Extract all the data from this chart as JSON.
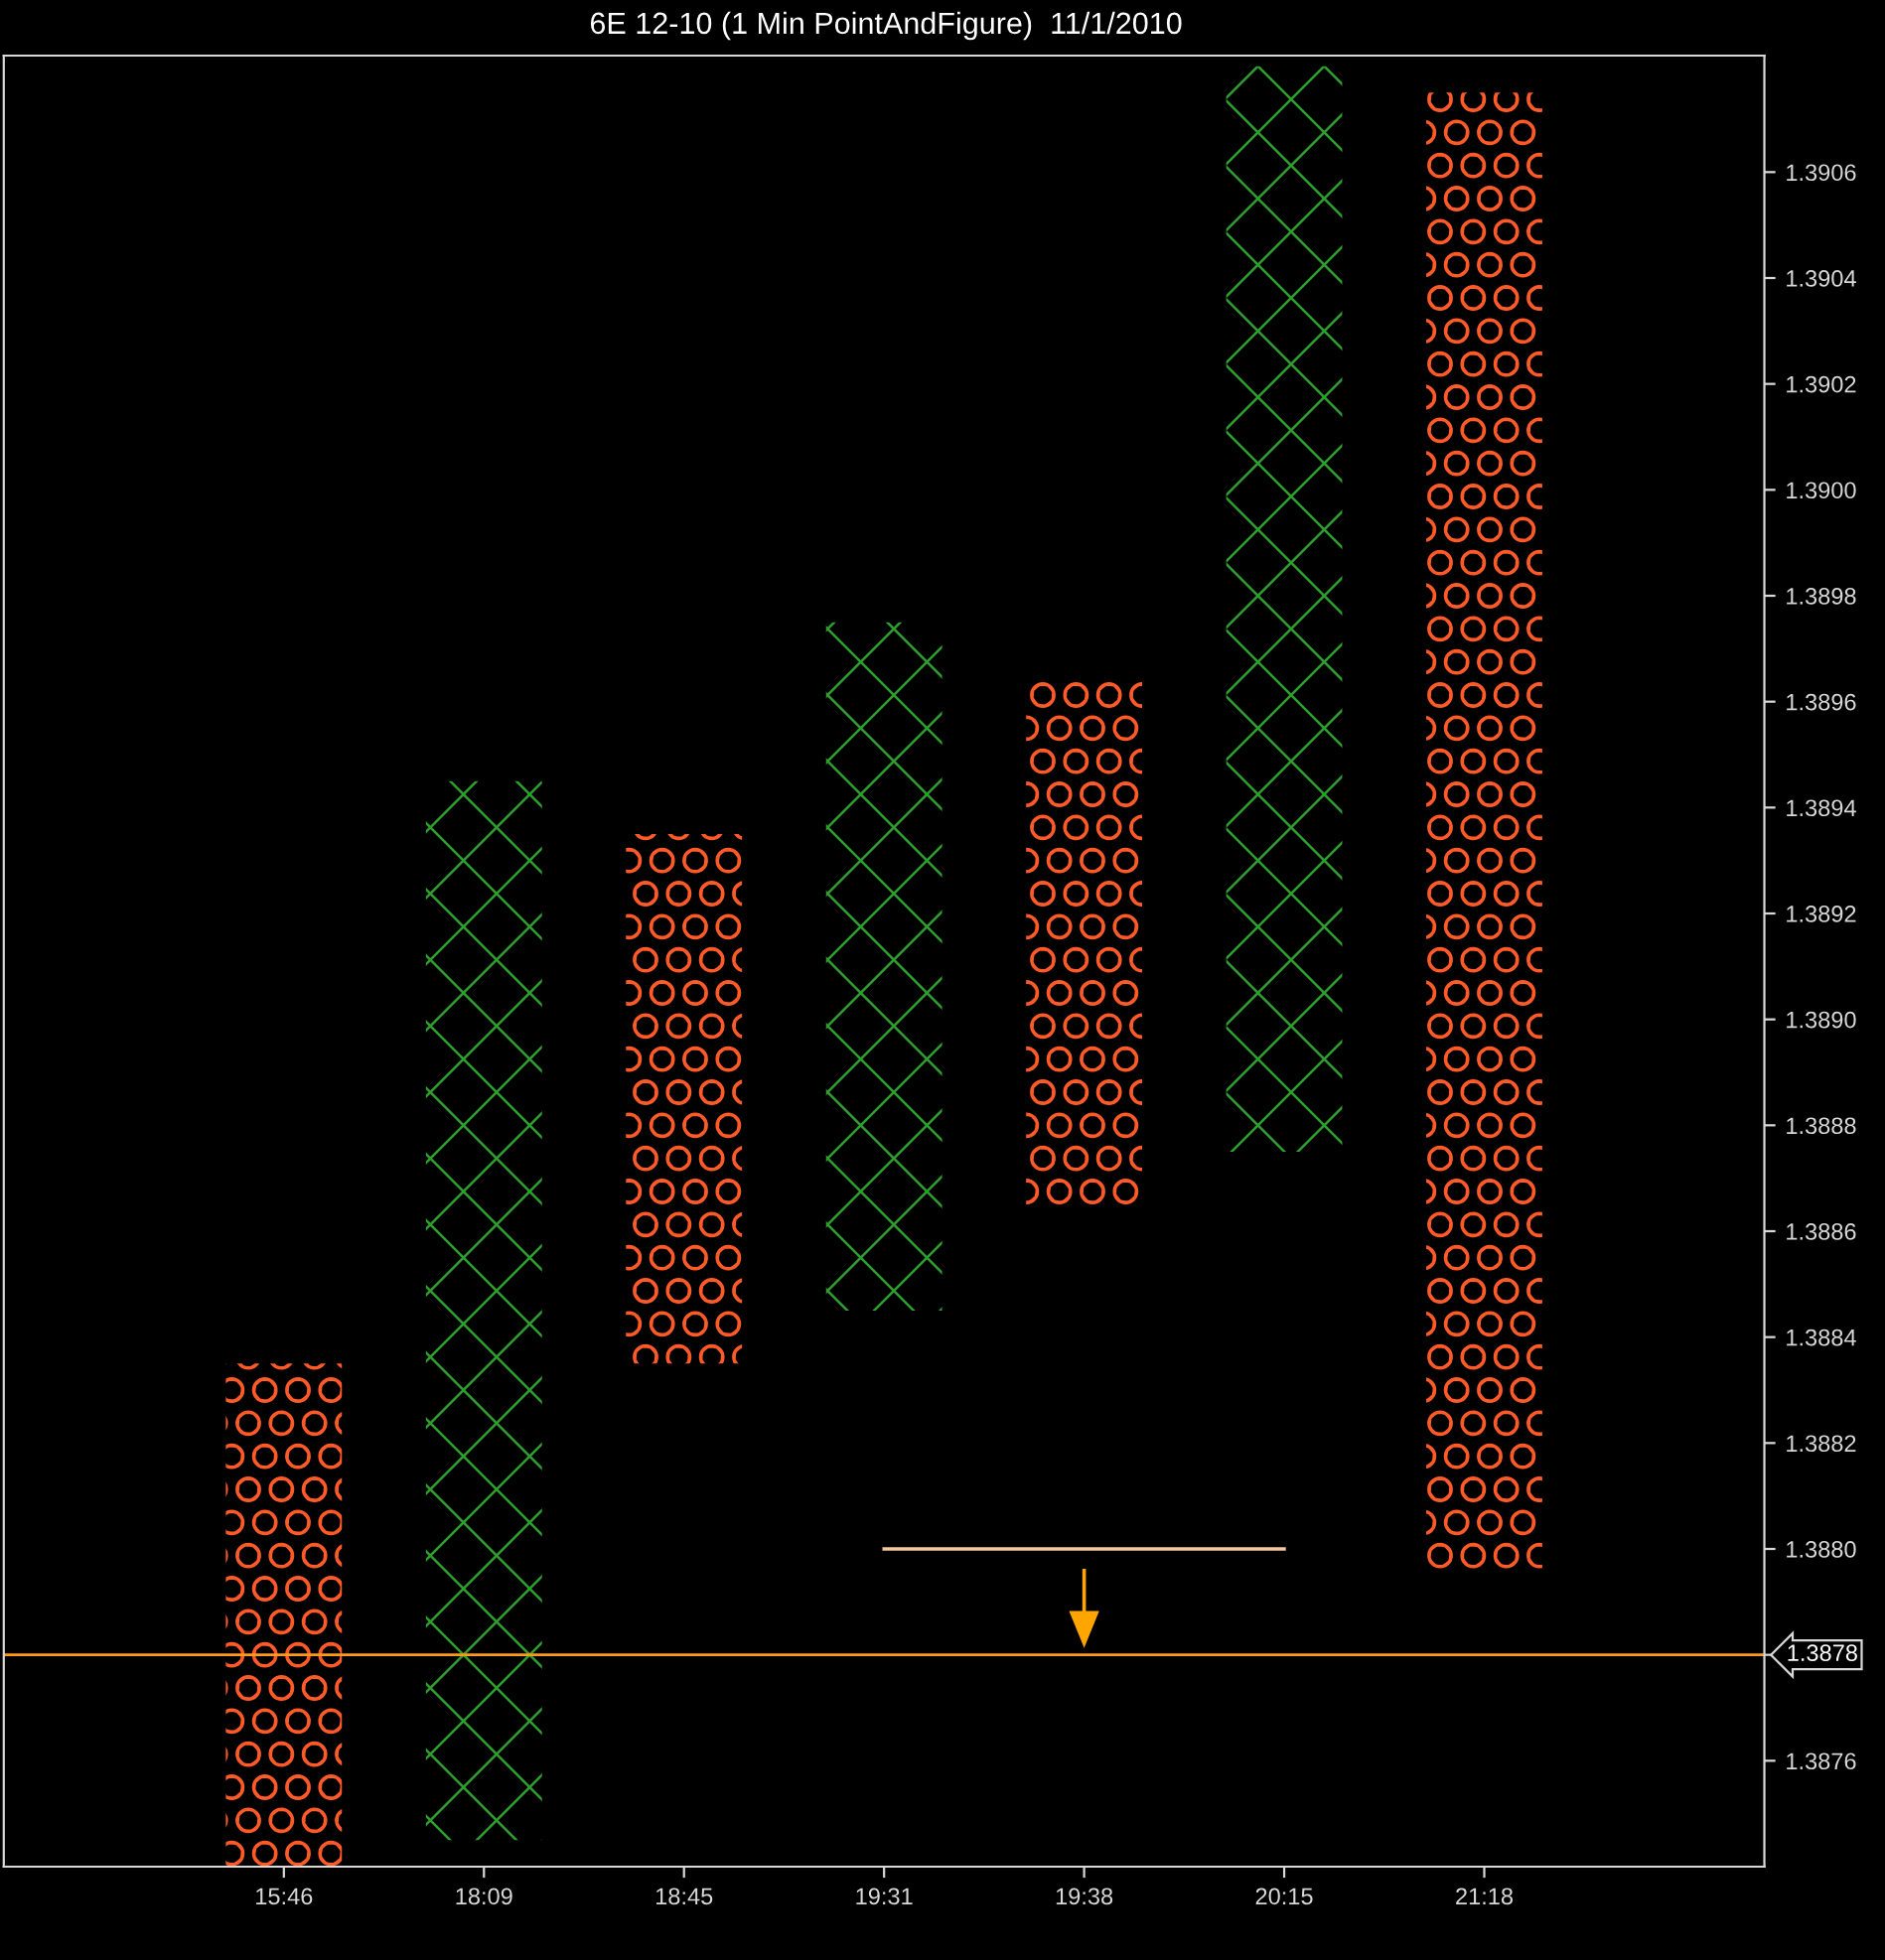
{
  "chart_data": {
    "type": "bar",
    "title": "6E 12-10 (1 Min PointAndFigure)  11/1/2010",
    "categories": [
      "15:46",
      "18:09",
      "18:45",
      "19:31",
      "19:38",
      "20:15",
      "21:18"
    ],
    "series": [
      {
        "color": "#ff5a28",
        "marker": "circle",
        "base": [
          1.3874,
          null,
          1.38835,
          null,
          1.38865,
          null,
          1.38795
        ],
        "values": [
          0.00095,
          null,
          0.001,
          null,
          0.001,
          null,
          0.0028
        ]
      },
      {
        "color": "#2e9e2e",
        "marker": "cross",
        "base": [
          null,
          1.38745,
          null,
          1.38845,
          null,
          1.38875,
          null
        ],
        "values": [
          null,
          0.002,
          null,
          0.0013,
          null,
          0.00205,
          null
        ]
      },
      {
        "type": "line",
        "color": "#f5c9a0",
        "values": [
          null,
          null,
          null,
          1.388,
          1.388,
          1.388,
          null
        ]
      }
    ],
    "ylim": [
      1.3874,
      1.39082
    ],
    "yticks": [
      1.3876,
      1.3878,
      {
        "value": 1.388,
        "label": "1.3880"
      },
      1.3882,
      1.3884,
      1.3886,
      1.3888,
      {
        "value": 1.389,
        "label": "1.3890"
      },
      1.3892,
      1.3894,
      1.3896,
      1.3898,
      {
        "value": 1.39,
        "label": "1.3900"
      },
      1.3902,
      1.3904,
      1.3906
    ],
    "ref_lines": [
      {
        "axis": "y",
        "value": 1.3878,
        "label": "1.3878",
        "color": "#ff9a1a"
      }
    ],
    "grid": false,
    "legend": false
  }
}
